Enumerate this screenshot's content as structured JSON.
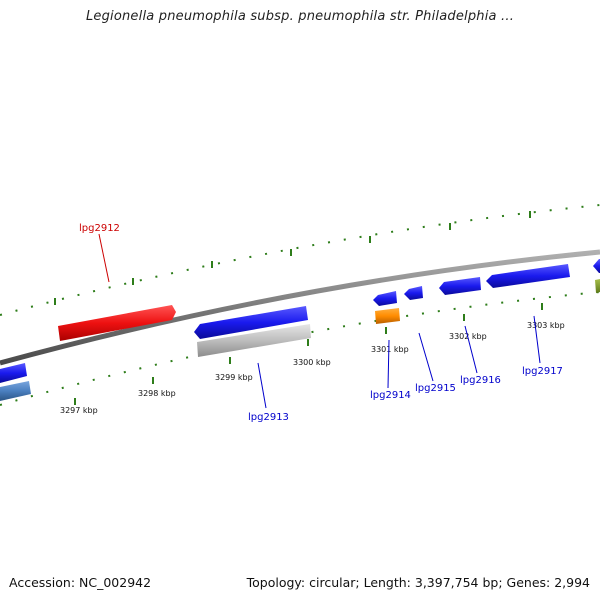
{
  "title": "Legionella pneumophila subsp. pneumophila str. Philadelphia ...",
  "footer": {
    "accession": "Accession: NC_002942",
    "summary": "Topology: circular; Length: 3,397,754 bp; Genes: 2,994"
  },
  "ticks": [
    {
      "label": "3297 kbp"
    },
    {
      "label": "3298 kbp"
    },
    {
      "label": "3299 kbp"
    },
    {
      "label": "3300 kbp"
    },
    {
      "label": "3301 kbp"
    },
    {
      "label": "3302 kbp"
    },
    {
      "label": "3303 kbp"
    }
  ],
  "genes": [
    {
      "name": "lpg2912",
      "color": "#cc0000"
    },
    {
      "name": "lpg2913",
      "color": "#0000cc"
    },
    {
      "name": "lpg2914",
      "color": "#0000cc"
    },
    {
      "name": "lpg2915",
      "color": "#0000cc"
    },
    {
      "name": "lpg2916",
      "color": "#0000cc"
    },
    {
      "name": "lpg2917",
      "color": "#0000cc"
    }
  ],
  "colors": {
    "backbone": "#808080",
    "tick_mark": "#2e7d1a",
    "forward_red": "#ee1111",
    "forward_blue": "#1a1aee",
    "gray_feature": "#b8b8b8",
    "orange_feature": "#ff8c00",
    "steel_feature": "#4a7fbf",
    "olive_feature": "#7a9a2a"
  }
}
